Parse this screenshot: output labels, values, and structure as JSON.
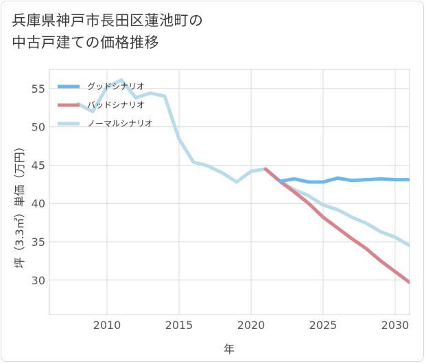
{
  "title_lines": [
    "兵庫県神戸市長田区蓮池町の",
    "中古戸建ての価格推移"
  ],
  "chart_data": {
    "type": "line",
    "title": "兵庫県神戸市長田区蓮池町の中古戸建ての価格推移",
    "xlabel": "年",
    "ylabel": "坪（3.3㎡）単価（万円）",
    "xlim": [
      2006,
      2031
    ],
    "ylim": [
      25.5,
      57.5
    ],
    "xticks": [
      2010,
      2015,
      2020,
      2025,
      2030
    ],
    "yticks": [
      30,
      35,
      40,
      45,
      50,
      55
    ],
    "grid": true,
    "legend_position": "top-left",
    "series": [
      {
        "name": "グッドシナリオ",
        "color": "#6cb8ee",
        "x": [
          2022,
          2023,
          2024,
          2025,
          2026,
          2027,
          2028,
          2029,
          2030,
          2031
        ],
        "y": [
          42.9,
          43.2,
          42.8,
          42.8,
          43.3,
          43.0,
          43.1,
          43.2,
          43.1,
          43.1
        ]
      },
      {
        "name": "バッドシナリオ",
        "color": "#d9848c",
        "x": [
          2021,
          2022,
          2023,
          2024,
          2025,
          2026,
          2027,
          2028,
          2029,
          2030,
          2031
        ],
        "y": [
          44.5,
          42.9,
          41.5,
          40.0,
          38.2,
          36.8,
          35.4,
          34.1,
          32.5,
          31.1,
          29.7
        ]
      },
      {
        "name": "ノーマルシナリオ",
        "color": "#b8dcea",
        "x": [
          2008,
          2009,
          2010,
          2011,
          2012,
          2013,
          2014,
          2015,
          2016,
          2017,
          2018,
          2019,
          2020,
          2021,
          2022,
          2023,
          2024,
          2025,
          2026,
          2027,
          2028,
          2029,
          2030,
          2031
        ],
        "y": [
          53.0,
          52.0,
          55.2,
          56.1,
          53.8,
          54.4,
          54.0,
          48.4,
          45.4,
          44.9,
          44.0,
          42.8,
          44.2,
          44.5,
          42.9,
          41.8,
          41.0,
          39.8,
          39.2,
          38.2,
          37.4,
          36.3,
          35.6,
          34.5
        ]
      }
    ]
  }
}
